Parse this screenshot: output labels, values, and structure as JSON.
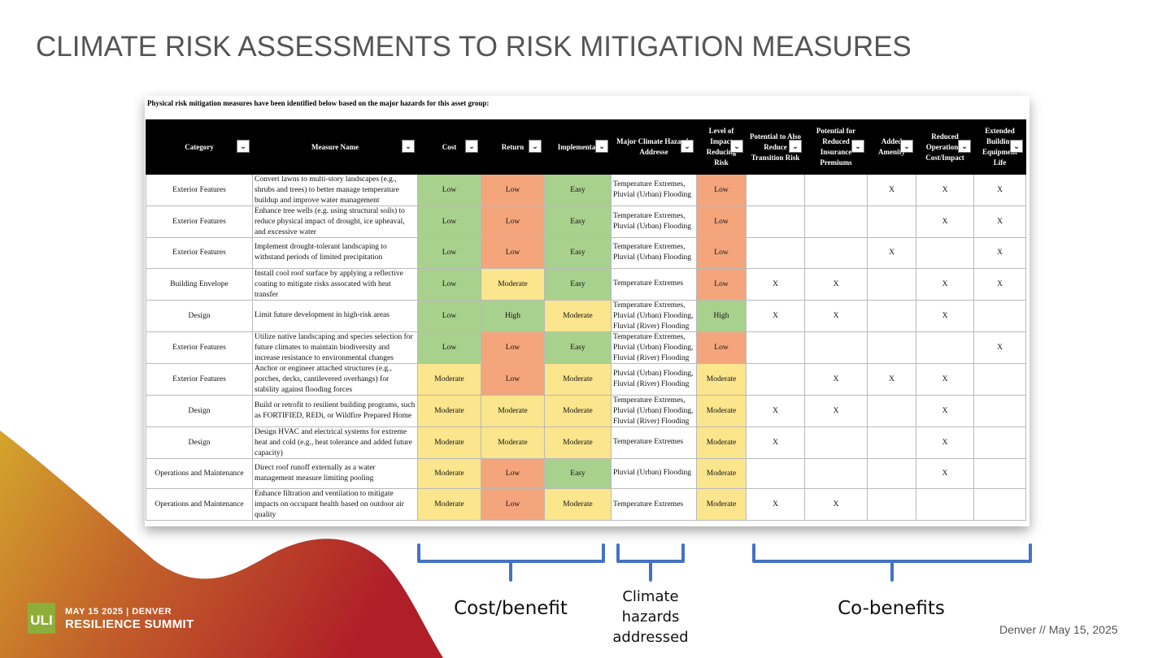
{
  "slide": {
    "title": "CLIMATE RISK ASSESSMENTS TO RISK MITIGATION MEASURES",
    "footer_date": "Denver  //  May 15, 2025"
  },
  "logo": {
    "mark": "ULI",
    "event_line1": "MAY 15 2025 | DENVER",
    "event_line2": "RESILIENCE SUMMIT"
  },
  "table": {
    "note": "Physical risk mitigation measures have been identified below based on the major hazards for this asset group:",
    "headers": [
      "Category",
      "Measure Name",
      "Cost",
      "Return",
      "Implementat",
      "Major Climate Hazards Addresse",
      "Level of Impact Reducing Risk",
      "Potential to Also Reduce Transition Risk",
      "Potential for Reduced Insurance Premiums",
      "Added Amenity",
      "Reduced Operational Cost/Impact",
      "Extended Building Equipment Life"
    ],
    "rows": [
      {
        "category": "Exterior Features",
        "measure": "Convert lawns to multi-story landscapes (e.g., shrubs and trees) to better manage temperature buildup and improve water management",
        "cost": "Low",
        "return": "Low",
        "impl": "Easy",
        "hazards": "Temperature Extremes, Pluvial (Urban) Flooding",
        "impact": "Low",
        "transition": "",
        "insurance": "",
        "amenity": "X",
        "opcost": "X",
        "life": "X"
      },
      {
        "category": "Exterior Features",
        "measure": "Enhance tree wells (e.g. using structural soils) to reduce physical impact of drought, ice upheaval, and excessive water",
        "cost": "Low",
        "return": "Low",
        "impl": "Easy",
        "hazards": "Temperature Extremes, Pluvial (Urban) Flooding",
        "impact": "Low",
        "transition": "",
        "insurance": "",
        "amenity": "",
        "opcost": "X",
        "life": "X"
      },
      {
        "category": "Exterior Features",
        "measure": "Implement drought-tolerant landscaping to withstand periods of limited precipitation",
        "cost": "Low",
        "return": "Low",
        "impl": "Easy",
        "hazards": "Temperature Extremes, Pluvial (Urban) Flooding",
        "impact": "Low",
        "transition": "",
        "insurance": "",
        "amenity": "X",
        "opcost": "",
        "life": "X"
      },
      {
        "category": "Building Envelope",
        "measure": "Install cool roof surface by applying a reflective coating to mitigate risks assocated with heat transfer",
        "cost": "Low",
        "return": "Moderate",
        "impl": "Easy",
        "hazards": "Temperature Extremes",
        "impact": "Low",
        "transition": "X",
        "insurance": "X",
        "amenity": "",
        "opcost": "X",
        "life": "X"
      },
      {
        "category": "Design",
        "measure": "Limit future development in high-risk areas",
        "cost": "Low",
        "return": "High",
        "impl": "Moderate",
        "hazards": "Temperature Extremes, Pluvial (Urban) Flooding, Fluvial (River) Flooding",
        "impact": "High",
        "transition": "X",
        "insurance": "X",
        "amenity": "",
        "opcost": "X",
        "life": ""
      },
      {
        "category": "Exterior Features",
        "measure": "Utilize native landscaping and species selection for future climates to maintain biodiversity and increase resistance to environmental changes",
        "cost": "Low",
        "return": "Low",
        "impl": "Easy",
        "hazards": "Temperature Extremes, Pluvial (Urban) Flooding, Fluvial (River) Flooding",
        "impact": "Low",
        "transition": "",
        "insurance": "",
        "amenity": "",
        "opcost": "",
        "life": "X"
      },
      {
        "category": "Exterior Features",
        "measure": "Anchor or engineer attached structures (e.g., porches, decks, cantilevered overhangs) for stability against flooding forces",
        "cost": "Moderate",
        "return": "Low",
        "impl": "Moderate",
        "hazards": "Pluvial (Urban) Flooding, Fluvial (River) Flooding",
        "impact": "Moderate",
        "transition": "",
        "insurance": "X",
        "amenity": "X",
        "opcost": "X",
        "life": ""
      },
      {
        "category": "Design",
        "measure": "Build or retrofit to resilient building programs, such as FORTIFIED, REDi, or Wildfire Prepared Home",
        "cost": "Moderate",
        "return": "Moderate",
        "impl": "Moderate",
        "hazards": "Temperature Extremes, Pluvial (Urban) Flooding, Fluvial (River) Flooding",
        "impact": "Moderate",
        "transition": "X",
        "insurance": "X",
        "amenity": "",
        "opcost": "X",
        "life": ""
      },
      {
        "category": "Design",
        "measure": "Design HVAC and electrical systems for extreme heat and cold (e.g., heat tolerance and added future capacity)",
        "cost": "Moderate",
        "return": "Moderate",
        "impl": "Moderate",
        "hazards": "Temperature Extremes",
        "impact": "Moderate",
        "transition": "X",
        "insurance": "",
        "amenity": "",
        "opcost": "X",
        "life": ""
      },
      {
        "category": "Operations and Maintenance",
        "measure": "Direct roof runoff externally as a water management measure limiting pooling",
        "cost": "Moderate",
        "return": "Low",
        "impl": "Easy",
        "hazards": "Pluvial (Urban) Flooding",
        "impact": "Moderate",
        "transition": "",
        "insurance": "",
        "amenity": "",
        "opcost": "X",
        "life": ""
      },
      {
        "category": "Operations and Maintenance",
        "measure": "Enhance filtration and ventilation to mitigate impacts on occupant health based on outdoor air quality",
        "cost": "Moderate",
        "return": "Low",
        "impl": "Moderate",
        "hazards": "Temperature Extremes",
        "impact": "Moderate",
        "transition": "X",
        "insurance": "X",
        "amenity": "",
        "opcost": "",
        "life": ""
      }
    ]
  },
  "annotations": {
    "cost_benefit": "Cost/benefit",
    "climate_hazards": "Climate hazards addressed",
    "co_benefits": "Co-benefits"
  },
  "colors": {
    "low_good": "#a9d18e",
    "low_bad": "#f4a57c",
    "moderate": "#fbe58d",
    "bracket": "#4472c4",
    "title": "#555555"
  }
}
